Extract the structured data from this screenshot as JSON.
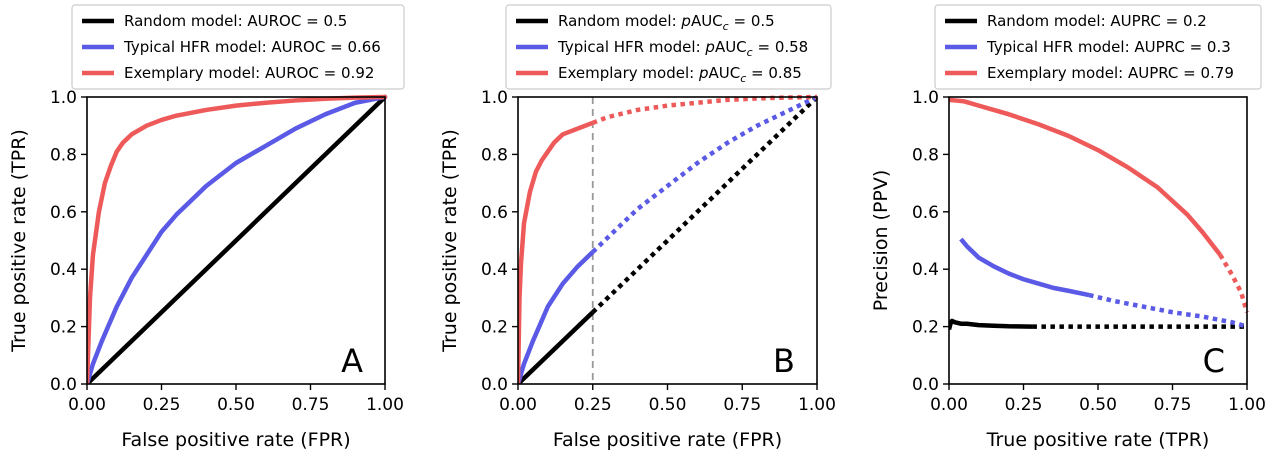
{
  "colors": {
    "random": "#000000",
    "typical": "#5a5ae6",
    "exemplary": "#ee5a5a",
    "reference_line": "#999999"
  },
  "chart_data": [
    {
      "type": "line",
      "panel_label": "A",
      "xlabel": "False positive rate (FPR)",
      "ylabel": "True positive rate (TPR)",
      "xlim": [
        0,
        1
      ],
      "ylim": [
        0,
        1
      ],
      "xticks": [
        "0.00",
        "0.25",
        "0.50",
        "0.75",
        "1.00"
      ],
      "yticks": [
        "0.0",
        "0.2",
        "0.4",
        "0.6",
        "0.8",
        "1.0"
      ],
      "grid": false,
      "legend_position": "above",
      "series": [
        {
          "name": "Random model: AUROC = 0.5",
          "legend_main": "Random model: AUROC = 0.5",
          "color_key": "random",
          "x": [
            0,
            1
          ],
          "y": [
            0,
            1
          ]
        },
        {
          "name": "Typical HFR model: AUROC = 0.66",
          "legend_main": "Typical HFR model: AUROC = 0.66",
          "color_key": "typical",
          "x": [
            0,
            0.02,
            0.05,
            0.1,
            0.15,
            0.2,
            0.25,
            0.3,
            0.35,
            0.4,
            0.5,
            0.6,
            0.7,
            0.8,
            0.9,
            1.0
          ],
          "y": [
            0,
            0.07,
            0.15,
            0.27,
            0.37,
            0.45,
            0.53,
            0.59,
            0.64,
            0.69,
            0.77,
            0.83,
            0.89,
            0.94,
            0.98,
            1.0
          ]
        },
        {
          "name": "Exemplary model: AUROC = 0.92",
          "legend_main": "Exemplary model: AUROC = 0.92",
          "color_key": "exemplary",
          "x": [
            0,
            0.01,
            0.02,
            0.04,
            0.06,
            0.08,
            0.1,
            0.12,
            0.15,
            0.2,
            0.25,
            0.3,
            0.4,
            0.5,
            0.6,
            0.7,
            0.8,
            0.9,
            1.0
          ],
          "y": [
            0,
            0.3,
            0.45,
            0.6,
            0.7,
            0.76,
            0.81,
            0.84,
            0.87,
            0.9,
            0.92,
            0.935,
            0.955,
            0.97,
            0.98,
            0.988,
            0.994,
            0.998,
            1.0
          ]
        }
      ]
    },
    {
      "type": "line",
      "panel_label": "B",
      "xlabel": "False positive rate (FPR)",
      "ylabel": "True positive rate (TPR)",
      "xlim": [
        0,
        1
      ],
      "ylim": [
        0,
        1
      ],
      "xticks": [
        "0.00",
        "0.25",
        "0.50",
        "0.75",
        "1.00"
      ],
      "yticks": [
        "0.0",
        "0.2",
        "0.4",
        "0.6",
        "0.8",
        "1.0"
      ],
      "grid": false,
      "legend_position": "above",
      "vertical_reference_line_x": 0.25,
      "series": [
        {
          "name": "Random model: pAUCc = 0.5",
          "legend_prefix": "Random model: ",
          "legend_italic": "p",
          "legend_main": "AUC",
          "legend_sub": "c",
          "legend_suffix": " = 0.5",
          "color_key": "random",
          "solid_until": 0.25,
          "x": [
            0,
            0.25,
            1
          ],
          "y": [
            0,
            0.25,
            1
          ]
        },
        {
          "name": "Typical HFR model: pAUCc = 0.58",
          "legend_prefix": "Typical HFR model: ",
          "legend_italic": "p",
          "legend_main": "AUC",
          "legend_sub": "c",
          "legend_suffix": " = 0.58",
          "color_key": "typical",
          "solid_until": 0.25,
          "x": [
            0,
            0.02,
            0.05,
            0.1,
            0.15,
            0.2,
            0.25,
            0.3,
            0.35,
            0.4,
            0.5,
            0.6,
            0.7,
            0.8,
            0.9,
            1.0
          ],
          "y": [
            0,
            0.07,
            0.15,
            0.27,
            0.35,
            0.41,
            0.46,
            0.51,
            0.56,
            0.61,
            0.69,
            0.77,
            0.84,
            0.9,
            0.95,
            1.0
          ]
        },
        {
          "name": "Exemplary model: pAUCc = 0.85",
          "legend_prefix": "Exemplary model: ",
          "legend_italic": "p",
          "legend_main": "AUC",
          "legend_sub": "c",
          "legend_suffix": " = 0.85",
          "color_key": "exemplary",
          "solid_until": 0.25,
          "x": [
            0,
            0.005,
            0.01,
            0.02,
            0.04,
            0.06,
            0.08,
            0.1,
            0.12,
            0.15,
            0.2,
            0.25,
            0.3,
            0.4,
            0.5,
            0.6,
            0.7,
            0.8,
            0.9,
            1.0
          ],
          "y": [
            0,
            0.3,
            0.42,
            0.56,
            0.67,
            0.74,
            0.78,
            0.81,
            0.84,
            0.87,
            0.89,
            0.91,
            0.93,
            0.955,
            0.97,
            0.98,
            0.99,
            0.995,
            0.998,
            1.0
          ]
        }
      ]
    },
    {
      "type": "line",
      "panel_label": "C",
      "xlabel": "True positive rate (TPR)",
      "ylabel": "Precision (PPV)",
      "xlim": [
        0,
        1
      ],
      "ylim": [
        0,
        1
      ],
      "xticks": [
        "0.00",
        "0.25",
        "0.50",
        "0.75",
        "1.00"
      ],
      "yticks": [
        "0.0",
        "0.2",
        "0.4",
        "0.6",
        "0.8",
        "1.0"
      ],
      "grid": false,
      "legend_position": "above",
      "series": [
        {
          "name": "Random model: AUPRC = 0.2",
          "legend_main": "Random model: AUPRC = 0.2",
          "color_key": "random",
          "solid_until": 0.28,
          "x": [
            0,
            0.005,
            0.01,
            0.02,
            0.04,
            0.06,
            0.1,
            0.15,
            0.2,
            0.28,
            0.4,
            0.6,
            0.8,
            1.0
          ],
          "y": [
            0.19,
            0.21,
            0.22,
            0.215,
            0.21,
            0.21,
            0.205,
            0.203,
            0.201,
            0.2,
            0.2,
            0.2,
            0.2,
            0.2
          ]
        },
        {
          "name": "Typical HFR model: AUPRC = 0.3",
          "legend_main": "Typical HFR model: AUPRC = 0.3",
          "color_key": "typical",
          "solid_until": 0.47,
          "x": [
            0.04,
            0.06,
            0.1,
            0.15,
            0.2,
            0.25,
            0.3,
            0.35,
            0.4,
            0.47,
            0.55,
            0.65,
            0.75,
            0.85,
            0.95,
            1.0
          ],
          "y": [
            0.505,
            0.48,
            0.44,
            0.41,
            0.385,
            0.365,
            0.35,
            0.335,
            0.325,
            0.31,
            0.29,
            0.27,
            0.25,
            0.235,
            0.215,
            0.2
          ]
        },
        {
          "name": "Exemplary model: AUPRC = 0.79",
          "legend_main": "Exemplary model: AUPRC = 0.79",
          "color_key": "exemplary",
          "solid_until": 0.91,
          "x": [
            0,
            0.05,
            0.1,
            0.15,
            0.2,
            0.3,
            0.4,
            0.5,
            0.6,
            0.7,
            0.8,
            0.85,
            0.91,
            0.95,
            0.98,
            1.0
          ],
          "y": [
            0.99,
            0.985,
            0.97,
            0.955,
            0.94,
            0.905,
            0.865,
            0.815,
            0.755,
            0.685,
            0.59,
            0.53,
            0.45,
            0.38,
            0.32,
            0.25
          ]
        }
      ]
    }
  ]
}
